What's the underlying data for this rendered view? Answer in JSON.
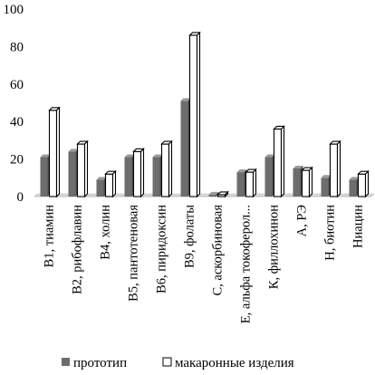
{
  "chart_data": {
    "type": "bar",
    "title": "",
    "xlabel": "",
    "ylabel": "",
    "ylim": [
      0,
      100
    ],
    "yticks": [
      "0",
      "20",
      "40",
      "60",
      "80",
      "100"
    ],
    "grid": false,
    "legend_position": "bottom",
    "bar_style": "3d",
    "categories": [
      "В1, тиамин",
      "В2, рибофлавин",
      "В4, холин",
      "В5, пантотеновая",
      "В6, пиридоксин",
      "В9, фолаты",
      "С, аскорбиновая",
      "Е, альфа токоферол...",
      "К, филлохинон",
      "А, РЭ",
      "Н, биотин",
      "Ниацин"
    ],
    "series": [
      {
        "name": "прототип",
        "color": "#6d6d6d",
        "values": [
          21,
          24,
          9,
          21,
          21,
          51,
          1,
          13,
          21,
          15,
          10,
          9
        ]
      },
      {
        "name": "макаронные изделия",
        "color": "#ffffff",
        "values": [
          46,
          28,
          12,
          24,
          28,
          86,
          1,
          13,
          36,
          14,
          28,
          12
        ]
      }
    ]
  }
}
